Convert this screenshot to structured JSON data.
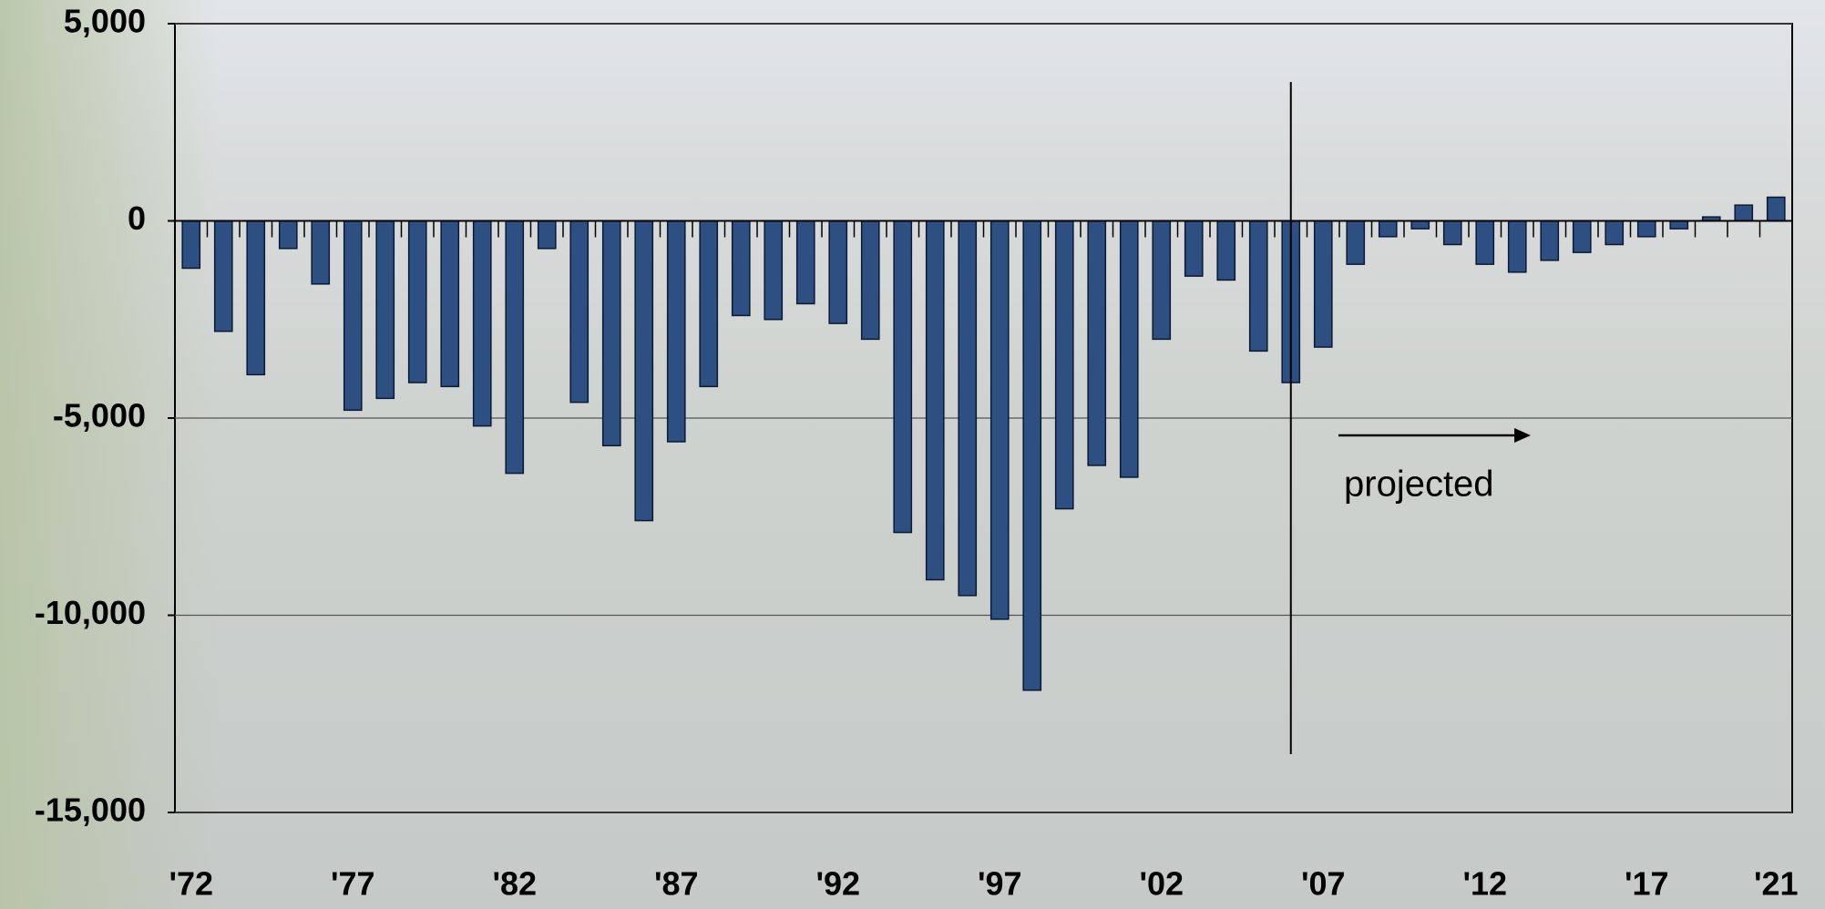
{
  "chart_data": {
    "type": "bar",
    "categories": [
      "'72",
      null,
      null,
      null,
      null,
      "'77",
      null,
      null,
      null,
      null,
      "'82",
      null,
      null,
      null,
      null,
      "'87",
      null,
      null,
      null,
      null,
      "'92",
      null,
      null,
      null,
      null,
      "'97",
      null,
      null,
      null,
      null,
      "'02",
      null,
      null,
      null,
      null,
      "'07",
      null,
      null,
      null,
      null,
      "'12",
      null,
      null,
      null,
      null,
      "'17",
      null,
      null,
      null,
      "'21"
    ],
    "values": [
      -1200,
      -2800,
      -3900,
      -700,
      -1600,
      -4800,
      -4500,
      -4100,
      -4200,
      -5200,
      -6400,
      -700,
      -4600,
      -5700,
      -7600,
      -5600,
      -4200,
      -2400,
      -2500,
      -2100,
      -2600,
      -3000,
      -7900,
      -9100,
      -9500,
      -10100,
      -11900,
      -7300,
      -6200,
      -6500,
      -3000,
      -1400,
      -1500,
      -3300,
      -4100,
      -3200,
      -1100,
      -400,
      -200,
      -600,
      -1100,
      -1300,
      -1000,
      -800,
      -600,
      -400,
      -200,
      100,
      400,
      600
    ],
    "color": "#2e4f82",
    "ylim": [
      -15000,
      5000
    ],
    "yticks": [
      {
        "value": 5000,
        "label": "5,000"
      },
      0,
      {
        "value": -5000,
        "label": "-5,000"
      },
      {
        "value": -10000,
        "label": "-10,000"
      },
      {
        "value": -15000,
        "label": "-15,000"
      }
    ],
    "grid": true,
    "annotations": [
      "projected"
    ]
  }
}
